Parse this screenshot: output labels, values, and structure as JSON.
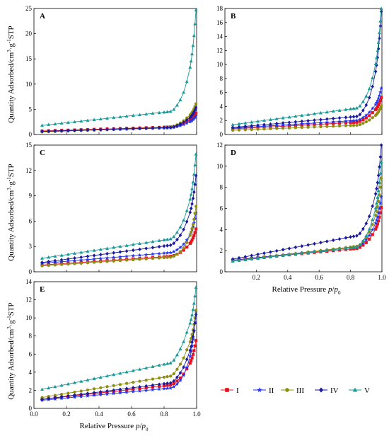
{
  "figure": {
    "ylabel_main": "Quantity Adsorbed/cm",
    "ylabel_sup1": "3",
    "ylabel_mid": "·g",
    "ylabel_sup2": "-1",
    "ylabel_end": "STP",
    "xlabel_main": "Relative Pressure ",
    "xlabel_p": "p",
    "xlabel_slash": "/",
    "xlabel_p0": "p",
    "xlabel_sub": "0"
  },
  "legend": [
    {
      "name": "I",
      "color": "#e8121f",
      "marker": "square"
    },
    {
      "name": "II",
      "color": "#2233ee",
      "marker": "star"
    },
    {
      "name": "III",
      "color": "#8e8e12",
      "marker": "circle"
    },
    {
      "name": "IV",
      "color": "#1a1a9e",
      "marker": "diamond"
    },
    {
      "name": "V",
      "color": "#1a9999",
      "marker": "triangle"
    }
  ],
  "chart_data": [
    {
      "label": "A",
      "type": "line",
      "xlim": [
        0,
        1
      ],
      "ylim": [
        0,
        25
      ],
      "yticks": [
        "0",
        "5",
        "10",
        "15",
        "20",
        "25"
      ],
      "xticks": [],
      "series": [
        {
          "name": "I",
          "color": "#e8121f",
          "marker": "square",
          "y0": 0.7,
          "slope": 1.0,
          "knee_y": 2.2,
          "end_y": 4.2
        },
        {
          "name": "II",
          "color": "#2233ee",
          "marker": "star",
          "y0": 0.6,
          "slope": 0.9,
          "knee_y": 1.9,
          "end_y": 3.6
        },
        {
          "name": "III",
          "color": "#8e8e12",
          "marker": "circle",
          "y0": 0.5,
          "slope": 1.2,
          "knee_y": 2.6,
          "end_y": 6.0
        },
        {
          "name": "IV",
          "color": "#1a1a9e",
          "marker": "diamond",
          "y0": 0.6,
          "slope": 1.0,
          "knee_y": 2.3,
          "end_y": 5.2
        },
        {
          "name": "V",
          "color": "#1a9999",
          "marker": "triangle",
          "y0": 1.8,
          "slope": 3.5,
          "knee_y": 7.0,
          "end_y": 24.2
        }
      ]
    },
    {
      "label": "B",
      "type": "line",
      "xlim": [
        0,
        1
      ],
      "ylim": [
        0,
        18
      ],
      "yticks": [
        "0",
        "2",
        "4",
        "6",
        "8",
        "10",
        "12",
        "14",
        "16",
        "18"
      ],
      "xticks": [],
      "series": [
        {
          "name": "I",
          "color": "#e8121f",
          "marker": "square",
          "y0": 0.8,
          "slope": 1.2,
          "knee_y": 2.6,
          "end_y": 5.2
        },
        {
          "name": "II",
          "color": "#2233ee",
          "marker": "star",
          "y0": 0.9,
          "slope": 1.4,
          "knee_y": 3.0,
          "end_y": 6.5
        },
        {
          "name": "III",
          "color": "#8e8e12",
          "marker": "circle",
          "y0": 0.6,
          "slope": 0.9,
          "knee_y": 2.0,
          "end_y": 4.0
        },
        {
          "name": "IV",
          "color": "#1a1a9e",
          "marker": "diamond",
          "y0": 1.0,
          "slope": 2.0,
          "knee_y": 4.2,
          "end_y": 17.2
        },
        {
          "name": "V",
          "color": "#1a9999",
          "marker": "triangle",
          "y0": 1.4,
          "slope": 3.0,
          "knee_y": 5.6,
          "end_y": 17.8
        }
      ]
    },
    {
      "label": "C",
      "type": "line",
      "xlim": [
        0,
        1
      ],
      "ylim": [
        0,
        15
      ],
      "yticks": [
        "0",
        "3",
        "6",
        "9",
        "12",
        "15"
      ],
      "xticks": [],
      "series": [
        {
          "name": "I",
          "color": "#e8121f",
          "marker": "square",
          "y0": 0.8,
          "slope": 1.3,
          "knee_y": 2.4,
          "end_y": 5.0
        },
        {
          "name": "II",
          "color": "#2233ee",
          "marker": "star",
          "y0": 1.0,
          "slope": 1.6,
          "knee_y": 3.0,
          "end_y": 6.8
        },
        {
          "name": "III",
          "color": "#8e8e12",
          "marker": "circle",
          "y0": 0.7,
          "slope": 1.3,
          "knee_y": 2.4,
          "end_y": 7.6
        },
        {
          "name": "IV",
          "color": "#1a1a9e",
          "marker": "diamond",
          "y0": 1.1,
          "slope": 2.6,
          "knee_y": 4.6,
          "end_y": 11.2
        },
        {
          "name": "V",
          "color": "#1a9999",
          "marker": "triangle",
          "y0": 1.6,
          "slope": 2.9,
          "knee_y": 5.6,
          "end_y": 13.7
        }
      ]
    },
    {
      "label": "D",
      "type": "line",
      "xlim": [
        0,
        1
      ],
      "ylim": [
        0,
        12
      ],
      "xlabel": "Relative Pressure p/p0",
      "yticks": [
        "0",
        "2",
        "4",
        "6",
        "8",
        "10",
        "12"
      ],
      "xticks": [
        "0.2",
        "0.4",
        "0.6",
        "0.8",
        "1.0"
      ],
      "series": [
        {
          "name": "I",
          "color": "#e8121f",
          "marker": "square",
          "y0": 1.1,
          "slope": 1.4,
          "knee_y": 2.9,
          "end_y": 6.0
        },
        {
          "name": "II",
          "color": "#2233ee",
          "marker": "star",
          "y0": 1.1,
          "slope": 1.6,
          "knee_y": 3.2,
          "end_y": 7.0
        },
        {
          "name": "III",
          "color": "#8e8e12",
          "marker": "circle",
          "y0": 1.0,
          "slope": 1.8,
          "knee_y": 3.4,
          "end_y": 8.7
        },
        {
          "name": "IV",
          "color": "#1a1a9e",
          "marker": "diamond",
          "y0": 1.2,
          "slope": 2.8,
          "knee_y": 4.8,
          "end_y": 11.8
        },
        {
          "name": "V",
          "color": "#1a9999",
          "marker": "triangle",
          "y0": 1.0,
          "slope": 1.7,
          "knee_y": 3.6,
          "end_y": 10.2
        }
      ]
    },
    {
      "label": "E",
      "type": "line",
      "xlim": [
        0,
        1
      ],
      "ylim": [
        0,
        14
      ],
      "xlabel": "Relative Pressure p/p0",
      "yticks": [
        "0",
        "2",
        "4",
        "6",
        "8",
        "10",
        "12",
        "14"
      ],
      "xticks": [
        "0.0",
        "0.2",
        "0.4",
        "0.6",
        "0.8",
        "1.0"
      ],
      "series": [
        {
          "name": "I",
          "color": "#e8121f",
          "marker": "square",
          "y0": 1.0,
          "slope": 2.0,
          "knee_y": 3.6,
          "end_y": 7.4
        },
        {
          "name": "II",
          "color": "#2233ee",
          "marker": "star",
          "y0": 0.9,
          "slope": 1.7,
          "knee_y": 3.0,
          "end_y": 10.5
        },
        {
          "name": "III",
          "color": "#8e8e12",
          "marker": "circle",
          "y0": 1.2,
          "slope": 3.0,
          "knee_y": 5.4,
          "end_y": 10.7
        },
        {
          "name": "IV",
          "color": "#1a1a9e",
          "marker": "diamond",
          "y0": 1.0,
          "slope": 2.3,
          "knee_y": 4.2,
          "end_y": 10.2
        },
        {
          "name": "V",
          "color": "#1a9999",
          "marker": "triangle",
          "y0": 2.1,
          "slope": 3.7,
          "knee_y": 7.2,
          "end_y": 13.2
        }
      ]
    }
  ]
}
